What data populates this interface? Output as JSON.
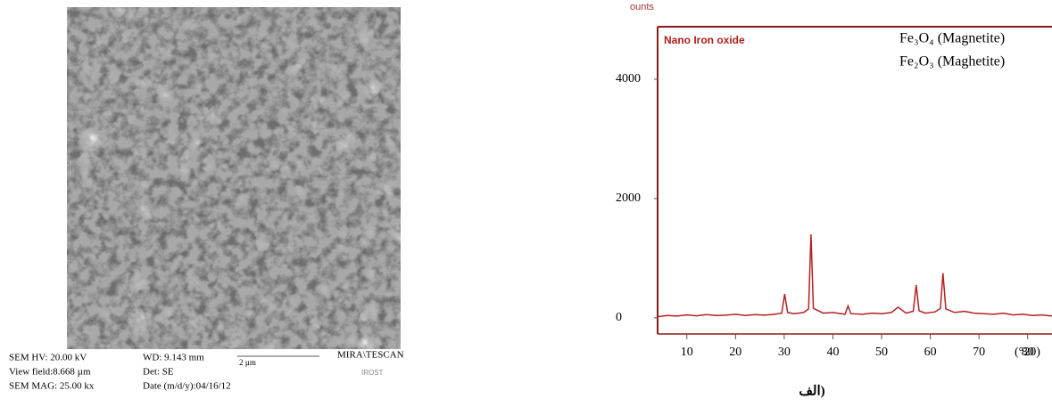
{
  "sem_panel": {
    "hv": "SEM HV: 20.00 kV",
    "view_field": "View field:8.668 µm",
    "mag": "SEM MAG: 25.00 kx",
    "wd": "WD: 9.143 mm",
    "det": "Det: SE",
    "date": "Date (m/d/y):04/16/12",
    "scale": "2 µm",
    "instrument": "MIRA\\TESCAN",
    "logo": "IROST"
  },
  "caption": "الف)",
  "chart_data": {
    "type": "line",
    "y_label": "ounts",
    "x_label": "(°20)",
    "annotations": [
      "Nano Iron oxide",
      "Fe₃O₄ (Magnetite)",
      "Fe₂O₃ (Maghetite)"
    ],
    "annotation_color": "#b01c1c",
    "xlim": [
      4,
      85
    ],
    "ylim": [
      -270,
      4880
    ],
    "xticks": [
      10,
      20,
      30,
      40,
      50,
      60,
      70,
      80
    ],
    "yticks": [
      0,
      2000,
      4000
    ],
    "frame_color": "#8b1a1a",
    "series": [
      {
        "name": "Nano Iron oxide",
        "color": "#b22222",
        "x": [
          4,
          6,
          8,
          10,
          12,
          14,
          16,
          18,
          20,
          22,
          24,
          26,
          28,
          29.5,
          30.1,
          30.7,
          32,
          34,
          35,
          35.5,
          36,
          38,
          40,
          42.5,
          43.1,
          43.7,
          46,
          48,
          50,
          52,
          53.4,
          55,
          56.5,
          57.1,
          57.7,
          59,
          61,
          62.1,
          62.6,
          63.2,
          65,
          67,
          69,
          71,
          73,
          75,
          77,
          79,
          81,
          83,
          85
        ],
        "values": [
          20,
          40,
          30,
          50,
          35,
          55,
          40,
          45,
          60,
          40,
          55,
          45,
          60,
          80,
          400,
          90,
          70,
          90,
          150,
          1400,
          160,
          80,
          90,
          60,
          200,
          70,
          60,
          80,
          70,
          90,
          180,
          80,
          110,
          550,
          120,
          80,
          100,
          160,
          750,
          150,
          90,
          110,
          80,
          70,
          60,
          80,
          50,
          60,
          40,
          50,
          30
        ]
      }
    ]
  }
}
